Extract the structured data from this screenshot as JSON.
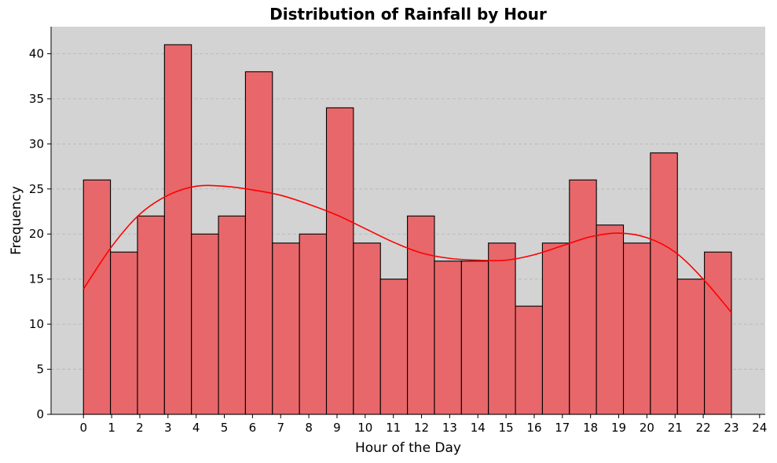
{
  "chart_data": {
    "type": "bar",
    "title": "Distribution of Rainfall by Hour",
    "xlabel": "Hour of the Day",
    "ylabel": "Frequency",
    "bin_edges": [
      0,
      0.958,
      1.917,
      2.875,
      3.833,
      4.792,
      5.75,
      6.708,
      7.667,
      8.625,
      9.583,
      10.542,
      11.5,
      12.458,
      13.417,
      14.375,
      15.333,
      16.292,
      17.25,
      18.208,
      19.167,
      20.125,
      21.083,
      22.042,
      23
    ],
    "values": [
      26,
      18,
      22,
      41,
      20,
      22,
      38,
      19,
      20,
      34,
      19,
      15,
      22,
      17,
      17,
      19,
      12,
      19,
      26,
      21,
      19,
      29,
      15,
      18
    ],
    "kde": {
      "x": [
        0,
        1,
        2,
        3,
        4,
        5,
        6,
        7,
        8,
        9,
        10,
        11,
        12,
        13,
        14,
        15,
        16,
        17,
        18,
        19,
        20,
        21,
        22,
        23
      ],
      "y": [
        13.9,
        18.6,
        22.2,
        24.3,
        25.3,
        25.3,
        24.9,
        24.3,
        23.3,
        22.1,
        20.6,
        19.1,
        17.9,
        17.3,
        17.1,
        17.1,
        17.7,
        18.7,
        19.7,
        20.1,
        19.6,
        18.0,
        15.0,
        11.3
      ]
    },
    "xticks": [
      0,
      1,
      2,
      3,
      4,
      5,
      6,
      7,
      8,
      9,
      10,
      11,
      12,
      13,
      14,
      15,
      16,
      17,
      18,
      19,
      20,
      21,
      22,
      23,
      24
    ],
    "yticks": [
      0,
      5,
      10,
      15,
      20,
      25,
      30,
      35,
      40
    ],
    "xlim": [
      -1.15,
      24.2
    ],
    "ylim": [
      0,
      43
    ],
    "grid": "y-dashed",
    "colors": {
      "bar_fill": "#e8676a",
      "bar_edge": "#000000",
      "kde_line": "#ff0000",
      "plot_bg": "#d3d3d3",
      "grid": "#b4b4b4"
    }
  }
}
